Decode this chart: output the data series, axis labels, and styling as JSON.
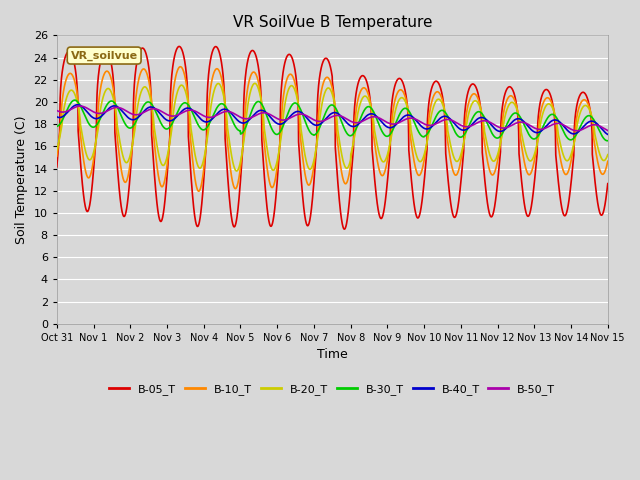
{
  "title": "VR SoilVue B Temperature",
  "xlabel": "Time",
  "ylabel": "Soil Temperature (C)",
  "xlim": [
    0,
    15
  ],
  "ylim": [
    0,
    26
  ],
  "yticks": [
    0,
    2,
    4,
    6,
    8,
    10,
    12,
    14,
    16,
    18,
    20,
    22,
    24,
    26
  ],
  "xtick_labels": [
    "Oct 31",
    "Nov 1",
    "Nov 2",
    "Nov 3",
    "Nov 4",
    "Nov 5",
    "Nov 6",
    "Nov 7",
    "Nov 8",
    "Nov 9",
    "Nov 10",
    "Nov 11",
    "Nov 12",
    "Nov 13",
    "Nov 14",
    "Nov 15"
  ],
  "xtick_positions": [
    0,
    1,
    2,
    3,
    4,
    5,
    6,
    7,
    8,
    9,
    10,
    11,
    12,
    13,
    14,
    15
  ],
  "background_color": "#d8d8d8",
  "plot_bg_color": "#d8d8d8",
  "grid_color": "#ffffff",
  "legend_label": "VR_soilvue",
  "series_colors": {
    "B-05_T": "#dd0000",
    "B-10_T": "#ff8800",
    "B-20_T": "#cccc00",
    "B-30_T": "#00cc00",
    "B-40_T": "#0000cc",
    "B-50_T": "#aa00aa"
  },
  "series_labels": [
    "B-05_T",
    "B-10_T",
    "B-20_T",
    "B-30_T",
    "B-40_T",
    "B-50_T"
  ]
}
